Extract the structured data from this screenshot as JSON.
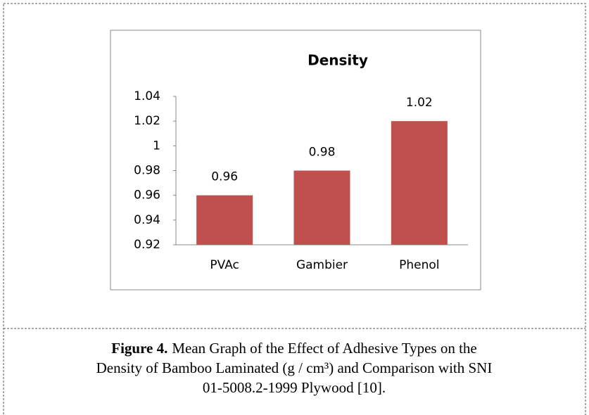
{
  "chart_data": {
    "type": "bar",
    "title": "Density",
    "categories": [
      "PVAc",
      "Gambier",
      "Phenol"
    ],
    "values": [
      0.96,
      0.98,
      1.02
    ],
    "color": "#c0504d",
    "ylim": [
      0.92,
      1.04
    ],
    "yticks": [
      0.92,
      0.94,
      0.96,
      0.98,
      1,
      1.02,
      1.04
    ],
    "grid": false
  },
  "caption": {
    "label": "Figure 4.",
    "lines": [
      "Mean Graph of the Effect of Adhesive Types on the",
      "Density of Bamboo Laminated (g / cm³) and Comparison with SNI",
      "01-5008.2-1999 Plywood [10]."
    ]
  }
}
